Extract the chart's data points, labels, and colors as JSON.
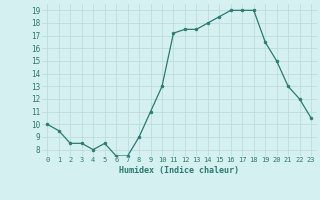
{
  "x": [
    0,
    1,
    2,
    3,
    4,
    5,
    6,
    7,
    8,
    9,
    10,
    11,
    12,
    13,
    14,
    15,
    16,
    17,
    18,
    19,
    20,
    21,
    22,
    23
  ],
  "y": [
    10.0,
    9.5,
    8.5,
    8.5,
    8.0,
    8.5,
    7.5,
    7.5,
    9.0,
    11.0,
    13.0,
    17.2,
    17.5,
    17.5,
    18.0,
    18.5,
    19.0,
    19.0,
    19.0,
    16.5,
    15.0,
    13.0,
    12.0,
    10.5
  ],
  "xlabel": "Humidex (Indice chaleur)",
  "ylim": [
    7.5,
    19.5
  ],
  "xlim": [
    -0.5,
    23.5
  ],
  "yticks": [
    8,
    9,
    10,
    11,
    12,
    13,
    14,
    15,
    16,
    17,
    18,
    19
  ],
  "xticks": [
    0,
    1,
    2,
    3,
    4,
    5,
    6,
    7,
    8,
    9,
    10,
    11,
    12,
    13,
    14,
    15,
    16,
    17,
    18,
    19,
    20,
    21,
    22,
    23
  ],
  "xtick_labels": [
    "0",
    "1",
    "2",
    "3",
    "4",
    "5",
    "6",
    "7",
    "8",
    "9",
    "10",
    "11",
    "12",
    "13",
    "14",
    "15",
    "16",
    "17",
    "18",
    "19",
    "20",
    "21",
    "22",
    "23"
  ],
  "line_color": "#2d7a6e",
  "marker_color": "#2d7a6e",
  "background_color": "#d4f0f0",
  "grid_color": "#b8dada",
  "tick_label_color": "#2d7a6e",
  "xlabel_color": "#2d7a6e",
  "tick_fontsize": 5.0,
  "xlabel_fontsize": 6.0,
  "ytick_fontsize": 5.5,
  "linewidth": 0.9,
  "markersize": 2.0
}
